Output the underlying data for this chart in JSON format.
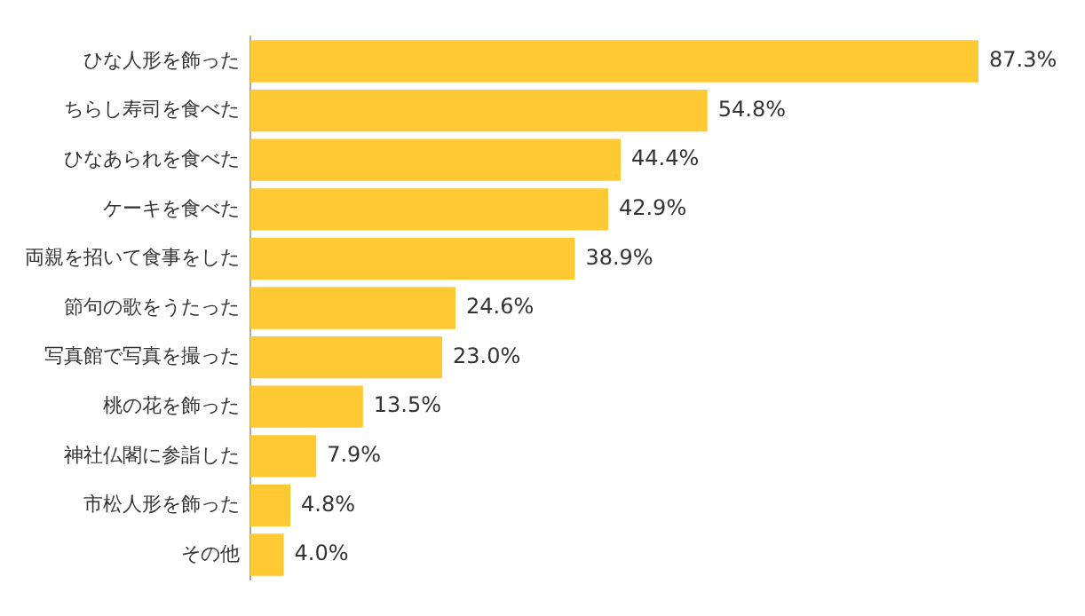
{
  "chart_data": {
    "type": "bar",
    "orientation": "horizontal",
    "categories": [
      "ひな人形を飾った",
      "ちらし寿司を食べた",
      "ひなあられを食べた",
      "ケーキを食べた",
      "両親を招いて食事をした",
      "節句の歌をうたった",
      "写真館で写真を撮った",
      "桃の花を飾った",
      "神社仏閣に参詣した",
      "市松人形を飾った",
      "その他"
    ],
    "values": [
      87.3,
      54.8,
      44.4,
      42.9,
      38.9,
      24.6,
      23.0,
      13.5,
      7.9,
      4.8,
      4.0
    ],
    "value_labels": [
      "87.3%",
      "54.8%",
      "44.4%",
      "42.9%",
      "38.9%",
      "24.6%",
      "23.0%",
      "13.5%",
      "7.9%",
      "4.8%",
      "4.0%"
    ],
    "color": "#ffc933",
    "tick_labels": "y"
  }
}
